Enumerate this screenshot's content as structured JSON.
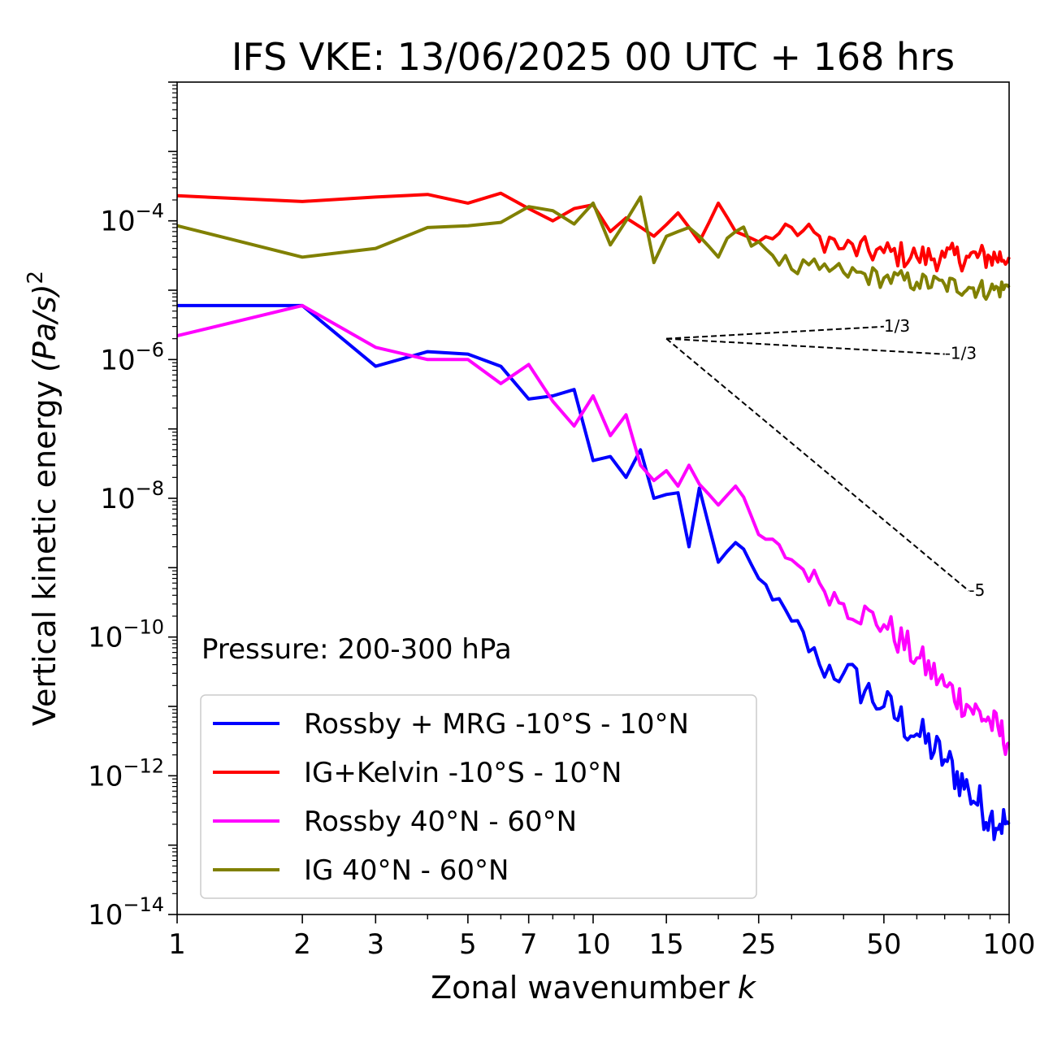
{
  "chart_data": {
    "type": "line",
    "title": "IFS VKE: 13/06/2025 00 UTC + 168 hrs",
    "xlabel": "Zonal wavenumber",
    "xlabel_italic": "k",
    "ylabel": "Vertical kinetic energy",
    "ylabel_units": "(Pa/s)",
    "ylabel_units_exp": "2",
    "xscale": "log",
    "yscale": "log",
    "xlim": [
      1,
      100
    ],
    "ylim": [
      1e-14,
      0.01
    ],
    "xticks": [
      1,
      2,
      3,
      5,
      7,
      10,
      15,
      25,
      50,
      100
    ],
    "xtick_labels": [
      "1",
      "2",
      "3",
      "5",
      "7",
      "10",
      "15",
      "25",
      "50",
      "100"
    ],
    "yticks": [
      -14,
      -12,
      -10,
      -8,
      -6,
      -4
    ],
    "ytick_base": "10",
    "ytick_exponents": [
      "−14",
      "−12",
      "−10",
      "−8",
      "−6",
      "−4"
    ],
    "annotation": "Pressure: 200-300 hPa",
    "legend_position": "lower-left",
    "reference_slopes": [
      {
        "label": "1/3",
        "slope": 0.3333,
        "x0": 15,
        "y0": 2e-06,
        "x1": 50
      },
      {
        "label": "-1/3",
        "slope": -0.3333,
        "x0": 15,
        "y0": 2e-06,
        "x1": 70
      },
      {
        "label": "-5",
        "slope": -5,
        "x0": 15,
        "y0": 2e-06,
        "x1": 80
      }
    ],
    "series": [
      {
        "name": "Rossby + MRG -10°S - 10°N",
        "color": "#0000ff",
        "anchors": [
          [
            1,
            6e-06
          ],
          [
            2,
            6e-06
          ],
          [
            3,
            8e-07
          ],
          [
            4,
            1.3e-06
          ],
          [
            5,
            1.2e-06
          ],
          [
            6,
            8e-07
          ],
          [
            7,
            2.7e-07
          ],
          [
            8,
            3e-07
          ],
          [
            9,
            3.7e-07
          ],
          [
            10,
            3.5e-08
          ],
          [
            11,
            4e-08
          ],
          [
            12,
            2e-08
          ],
          [
            13,
            5e-08
          ],
          [
            14,
            1e-08
          ],
          [
            16,
            1.2e-08
          ],
          [
            17,
            2e-09
          ],
          [
            18,
            1.4e-08
          ],
          [
            20,
            1.2e-09
          ],
          [
            22,
            2.3e-09
          ],
          [
            25,
            7e-10
          ],
          [
            30,
            1.7e-10
          ],
          [
            35,
            4e-11
          ],
          [
            40,
            3e-11
          ],
          [
            50,
            1e-11
          ],
          [
            60,
            4e-12
          ],
          [
            70,
            1.7e-12
          ],
          [
            80,
            6e-13
          ],
          [
            90,
            2.5e-13
          ],
          [
            100,
            2e-13
          ]
        ],
        "jitter": [
          0.05,
          0.05,
          0.05,
          0.05,
          0.05,
          0.05,
          0.05,
          0.05,
          0.05,
          0.05,
          0.05,
          0.05,
          0.05,
          0.05,
          0.05,
          0.05,
          0.05,
          0.05,
          0.08,
          0.1,
          0.2,
          0.25,
          0.3,
          0.3,
          0.3,
          0.3,
          0.3,
          0.3,
          0.3
        ]
      },
      {
        "name": "IG+Kelvin -10°S - 10°N",
        "color": "#ff0000",
        "anchors": [
          [
            1,
            0.00023
          ],
          [
            2,
            0.00019
          ],
          [
            3,
            0.00022
          ],
          [
            4,
            0.00024
          ],
          [
            5,
            0.00018
          ],
          [
            6,
            0.00025
          ],
          [
            7,
            0.00015
          ],
          [
            8,
            0.0001
          ],
          [
            9,
            0.00015
          ],
          [
            10,
            0.00017
          ],
          [
            11,
            7e-05
          ],
          [
            12,
            0.00011
          ],
          [
            14,
            6e-05
          ],
          [
            16,
            0.00013
          ],
          [
            18,
            5e-05
          ],
          [
            20,
            0.00018
          ],
          [
            22,
            7e-05
          ],
          [
            25,
            5e-05
          ],
          [
            30,
            8e-05
          ],
          [
            35,
            6e-05
          ],
          [
            40,
            4e-05
          ],
          [
            50,
            3.5e-05
          ],
          [
            60,
            3e-05
          ],
          [
            70,
            3e-05
          ],
          [
            80,
            3e-05
          ],
          [
            90,
            3e-05
          ],
          [
            100,
            3e-05
          ]
        ],
        "jitter": [
          0,
          0,
          0,
          0,
          0,
          0,
          0,
          0,
          0,
          0,
          0,
          0,
          0,
          0,
          0,
          0,
          0,
          0.1,
          0.15,
          0.2,
          0.2,
          0.2,
          0.2,
          0.2,
          0.2,
          0.2,
          0.2
        ]
      },
      {
        "name": "Rossby 40°N - 60°N",
        "color": "#ff00ff",
        "anchors": [
          [
            1,
            2.2e-06
          ],
          [
            2,
            6e-06
          ],
          [
            3,
            1.5e-06
          ],
          [
            4,
            1e-06
          ],
          [
            5,
            1e-06
          ],
          [
            6,
            4.5e-07
          ],
          [
            7,
            8.5e-07
          ],
          [
            8,
            2.5e-07
          ],
          [
            9,
            1.1e-07
          ],
          [
            10,
            3e-07
          ],
          [
            11,
            8e-08
          ],
          [
            12,
            1.6e-07
          ],
          [
            13,
            3e-08
          ],
          [
            14,
            1.8e-08
          ],
          [
            15,
            2.5e-08
          ],
          [
            16,
            1.5e-08
          ],
          [
            17,
            3e-08
          ],
          [
            18,
            1.6e-08
          ],
          [
            20,
            8e-09
          ],
          [
            22,
            1.5e-08
          ],
          [
            25,
            3e-09
          ],
          [
            30,
            1.3e-09
          ],
          [
            35,
            6e-10
          ],
          [
            40,
            3e-10
          ],
          [
            50,
            1.5e-10
          ],
          [
            60,
            5e-11
          ],
          [
            70,
            2e-11
          ],
          [
            80,
            1e-11
          ],
          [
            90,
            6e-12
          ],
          [
            100,
            3e-12
          ]
        ],
        "jitter": [
          0,
          0,
          0,
          0,
          0,
          0,
          0,
          0,
          0,
          0,
          0,
          0,
          0,
          0,
          0,
          0,
          0,
          0,
          0.06,
          0.08,
          0.12,
          0.15,
          0.2,
          0.22,
          0.25,
          0.25,
          0.25,
          0.25,
          0.25,
          0.25
        ]
      },
      {
        "name": "IG 40°N - 60°N",
        "color": "#808000",
        "anchors": [
          [
            1,
            8.5e-05
          ],
          [
            2,
            3e-05
          ],
          [
            3,
            4e-05
          ],
          [
            4,
            8e-05
          ],
          [
            5,
            8.5e-05
          ],
          [
            6,
            9.5e-05
          ],
          [
            7,
            0.00016
          ],
          [
            8,
            0.00014
          ],
          [
            9,
            9e-05
          ],
          [
            10,
            0.00018
          ],
          [
            11,
            4.5e-05
          ],
          [
            12,
            0.0001
          ],
          [
            13,
            0.00022
          ],
          [
            14,
            2.5e-05
          ],
          [
            15,
            6e-05
          ],
          [
            16,
            7e-05
          ],
          [
            17,
            8e-05
          ],
          [
            18,
            6e-05
          ],
          [
            20,
            3e-05
          ],
          [
            22,
            7e-05
          ],
          [
            25,
            5e-05
          ],
          [
            30,
            2e-05
          ],
          [
            35,
            2e-05
          ],
          [
            40,
            1.8e-05
          ],
          [
            50,
            1.5e-05
          ],
          [
            60,
            1.3e-05
          ],
          [
            70,
            1.2e-05
          ],
          [
            80,
            1.1e-05
          ],
          [
            90,
            1e-05
          ],
          [
            100,
            1.1e-05
          ]
        ],
        "jitter": [
          0,
          0,
          0,
          0,
          0,
          0,
          0,
          0,
          0,
          0,
          0,
          0,
          0,
          0,
          0,
          0,
          0,
          0,
          0.1,
          0.12,
          0.15,
          0.15,
          0.15,
          0.15,
          0.15,
          0.15,
          0.15,
          0.15,
          0.15,
          0.15
        ]
      }
    ]
  }
}
